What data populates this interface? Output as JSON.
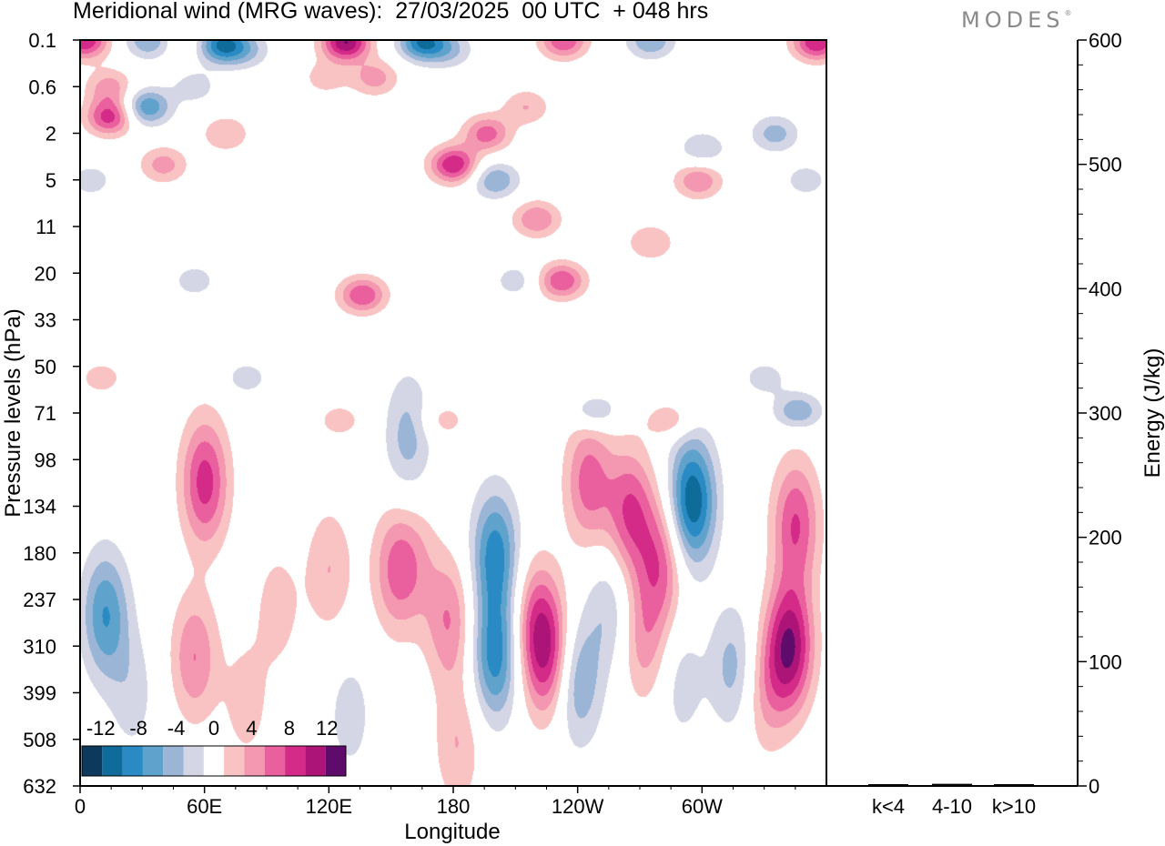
{
  "title": "Meridional wind (MRG waves):  27/03/2025  00 UTC  + 048 hrs",
  "brand": "MODES",
  "brand_mark": "®",
  "chart_data": [
    {
      "type": "heatmap",
      "title": "Meridional wind (MRG waves):  27/03/2025  00 UTC  + 048 hrs",
      "xlabel": "Longitude",
      "ylabel": "Pressure levels (hPa)",
      "x_ticks": [
        "0",
        "60E",
        "120E",
        "180",
        "120W",
        "60W"
      ],
      "x_tick_values": [
        0,
        60,
        120,
        180,
        240,
        300
      ],
      "xlim": [
        0,
        360
      ],
      "y_ticks": [
        "0.1",
        "0.6",
        "2",
        "5",
        "11",
        "20",
        "33",
        "50",
        "71",
        "98",
        "134",
        "180",
        "237",
        "310",
        "399",
        "508",
        "632"
      ],
      "colorbar": {
        "labels": [
          "-12",
          "-8",
          "-4",
          "0",
          "4",
          "8",
          "12"
        ],
        "label_levels": [
          -12,
          -8,
          -4,
          0,
          4,
          8,
          12
        ],
        "levels": [
          -14,
          -12,
          -10,
          -8,
          -6,
          -4,
          -2,
          2,
          4,
          6,
          8,
          10,
          12,
          14
        ],
        "colors": [
          "#0d3a5c",
          "#0e6b9a",
          "#2a8bc4",
          "#5fa3cc",
          "#9ab5d6",
          "#d4d6e6",
          "#ffffff",
          "#f9c3c3",
          "#f497b0",
          "#ea609f",
          "#d42a88",
          "#ad1478",
          "#5e0b6b"
        ]
      },
      "blobs": [
        {
          "lon": 2,
          "plev": 0.1,
          "v": 10
        },
        {
          "lon": 14,
          "plev": 0.6,
          "v": 5
        },
        {
          "lon": 14,
          "plev": 1.5,
          "v": 9
        },
        {
          "lon": 33,
          "plev": 0.1,
          "v": -6
        },
        {
          "lon": 32,
          "plev": 1.2,
          "v": -8
        },
        {
          "lon": 40,
          "plev": 4,
          "v": 5
        },
        {
          "lon": 5,
          "plev": 5,
          "v": -3
        },
        {
          "lon": 50,
          "plev": 0.1,
          "v": 2
        },
        {
          "lon": 68,
          "plev": 0.15,
          "v": -10
        },
        {
          "lon": 80,
          "plev": 0.2,
          "v": -4
        },
        {
          "lon": 70,
          "plev": 2,
          "v": 4
        },
        {
          "lon": 55,
          "plev": 0.6,
          "v": -3
        },
        {
          "lon": 128,
          "plev": 0.12,
          "v": 12
        },
        {
          "lon": 118,
          "plev": 0.5,
          "v": 3
        },
        {
          "lon": 142,
          "plev": 0.5,
          "v": 5
        },
        {
          "lon": 165,
          "plev": 0.12,
          "v": -10
        },
        {
          "lon": 178,
          "plev": 0.2,
          "v": -4
        },
        {
          "lon": 180,
          "plev": 4,
          "v": 10
        },
        {
          "lon": 196,
          "plev": 2,
          "v": 7
        },
        {
          "lon": 215,
          "plev": 1.2,
          "v": 4
        },
        {
          "lon": 200,
          "plev": 5,
          "v": -6
        },
        {
          "lon": 220,
          "plev": 10,
          "v": 6
        },
        {
          "lon": 233,
          "plev": 0.1,
          "v": 8
        },
        {
          "lon": 275,
          "plev": 0.1,
          "v": -6
        },
        {
          "lon": 300,
          "plev": 3,
          "v": -4
        },
        {
          "lon": 335,
          "plev": 2,
          "v": -5
        },
        {
          "lon": 298,
          "plev": 5,
          "v": 6
        },
        {
          "lon": 355,
          "plev": 0.12,
          "v": 10
        },
        {
          "lon": 350,
          "plev": 5,
          "v": -3
        },
        {
          "lon": 275,
          "plev": 14,
          "v": 4
        },
        {
          "lon": 232,
          "plev": 22,
          "v": 8
        },
        {
          "lon": 136,
          "plev": 26,
          "v": 8
        },
        {
          "lon": 210,
          "plev": 22,
          "v": -3
        },
        {
          "lon": 55,
          "plev": 22,
          "v": -3
        },
        {
          "lon": 10,
          "plev": 55,
          "v": 3
        },
        {
          "lon": 80,
          "plev": 55,
          "v": -3
        },
        {
          "lon": 125,
          "plev": 75,
          "v": 3
        },
        {
          "lon": 158,
          "plev": 85,
          "v": -5
        },
        {
          "lon": 175,
          "plev": 75,
          "v": 3
        },
        {
          "lon": 248,
          "plev": 70,
          "v": -5
        },
        {
          "lon": 285,
          "plev": 75,
          "v": 4
        },
        {
          "lon": 346,
          "plev": 70,
          "v": -6
        },
        {
          "lon": 330,
          "plev": 55,
          "v": -3
        },
        {
          "lon": 60,
          "plev": 115,
          "v": 9
        },
        {
          "lon": 245,
          "plev": 115,
          "v": 7
        },
        {
          "lon": 265,
          "plev": 140,
          "v": 8
        },
        {
          "lon": 295,
          "plev": 130,
          "v": -12
        },
        {
          "lon": 345,
          "plev": 150,
          "v": 8
        },
        {
          "lon": 342,
          "plev": 310,
          "v": 12
        },
        {
          "lon": 330,
          "plev": 400,
          "v": 4
        },
        {
          "lon": 315,
          "plev": 350,
          "v": -5
        },
        {
          "lon": 12,
          "plev": 260,
          "v": -8
        },
        {
          "lon": 25,
          "plev": 400,
          "v": -3
        },
        {
          "lon": 55,
          "plev": 330,
          "v": 6
        },
        {
          "lon": 80,
          "plev": 420,
          "v": 3
        },
        {
          "lon": 95,
          "plev": 250,
          "v": 3
        },
        {
          "lon": 120,
          "plev": 200,
          "v": 4
        },
        {
          "lon": 130,
          "plev": 450,
          "v": -3
        },
        {
          "lon": 152,
          "plev": 200,
          "v": 6
        },
        {
          "lon": 162,
          "plev": 190,
          "v": 3
        },
        {
          "lon": 178,
          "plev": 270,
          "v": 6
        },
        {
          "lon": 182,
          "plev": 520,
          "v": 4
        },
        {
          "lon": 200,
          "plev": 180,
          "v": -9
        },
        {
          "lon": 200,
          "plev": 330,
          "v": -9
        },
        {
          "lon": 220,
          "plev": 270,
          "v": 6
        },
        {
          "lon": 225,
          "plev": 330,
          "v": 8
        },
        {
          "lon": 240,
          "plev": 380,
          "v": -6
        },
        {
          "lon": 255,
          "plev": 250,
          "v": -4
        },
        {
          "lon": 272,
          "plev": 300,
          "v": 5
        },
        {
          "lon": 280,
          "plev": 190,
          "v": 7
        },
        {
          "lon": 290,
          "plev": 380,
          "v": -3
        }
      ]
    },
    {
      "type": "bar",
      "ylabel": "Energy (J/kg)",
      "categories": [
        "k<4",
        "4-10",
        "k>10"
      ],
      "values": [
        0,
        1,
        0
      ],
      "ylim": [
        0,
        600
      ],
      "y_ticks": [
        "0",
        "100",
        "200",
        "300",
        "400",
        "500",
        "600"
      ]
    }
  ]
}
